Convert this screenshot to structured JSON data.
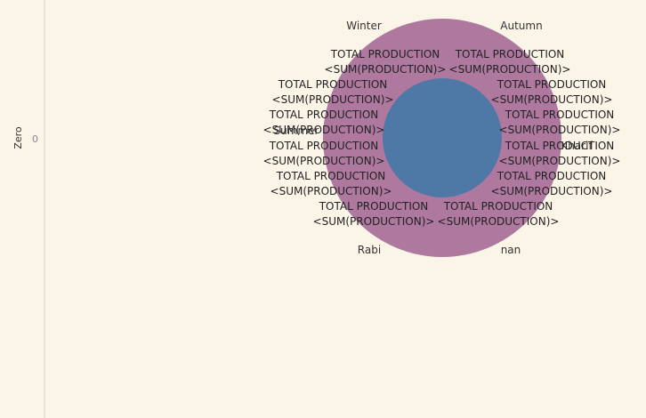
{
  "chart_data": {
    "type": "pie",
    "xlabel": "",
    "ylabel": "Zero",
    "yticks": [
      "0"
    ],
    "segments": [
      "Winter",
      "Autumn",
      "Summer",
      "Kharif",
      "Rabi",
      "nan"
    ],
    "mark_label_line1": "TOTAL PRODUCTION",
    "mark_label_line2": "<SUM(PRODUCTION)>",
    "mark_label_count": 12,
    "colors": {
      "outer_ring": "#ae789f",
      "inner_circle": "#4e79a7",
      "axis_line": "#d6d2c8",
      "background": "#fbf5e8"
    }
  }
}
